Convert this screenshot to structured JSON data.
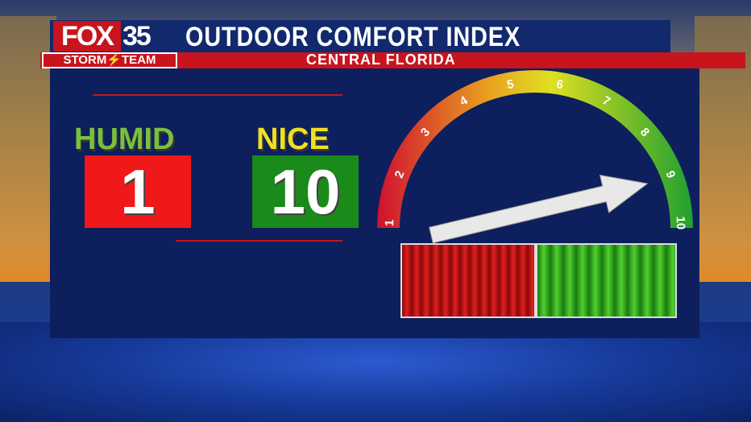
{
  "header": {
    "logo_fox": "FOX",
    "logo_number": "35",
    "logo_team": "STORM⚡TEAM",
    "title": "OUTDOOR COMFORT INDEX",
    "subtitle": "CENTRAL FLORIDA"
  },
  "humid": {
    "label": "HUMID",
    "value": "1",
    "color": "#f01818"
  },
  "nice": {
    "label": "NICE",
    "value": "10",
    "color": "#1a8a1a"
  },
  "gauge": {
    "ticks": [
      "1",
      "2",
      "3",
      "4",
      "5",
      "6",
      "7",
      "8",
      "9",
      "10"
    ],
    "pointer_value": 9,
    "colors": [
      "#d01030",
      "#e8a020",
      "#e0e020",
      "#20a030"
    ]
  },
  "bars": {
    "left_color": "#c01010",
    "right_color": "#30b020"
  }
}
